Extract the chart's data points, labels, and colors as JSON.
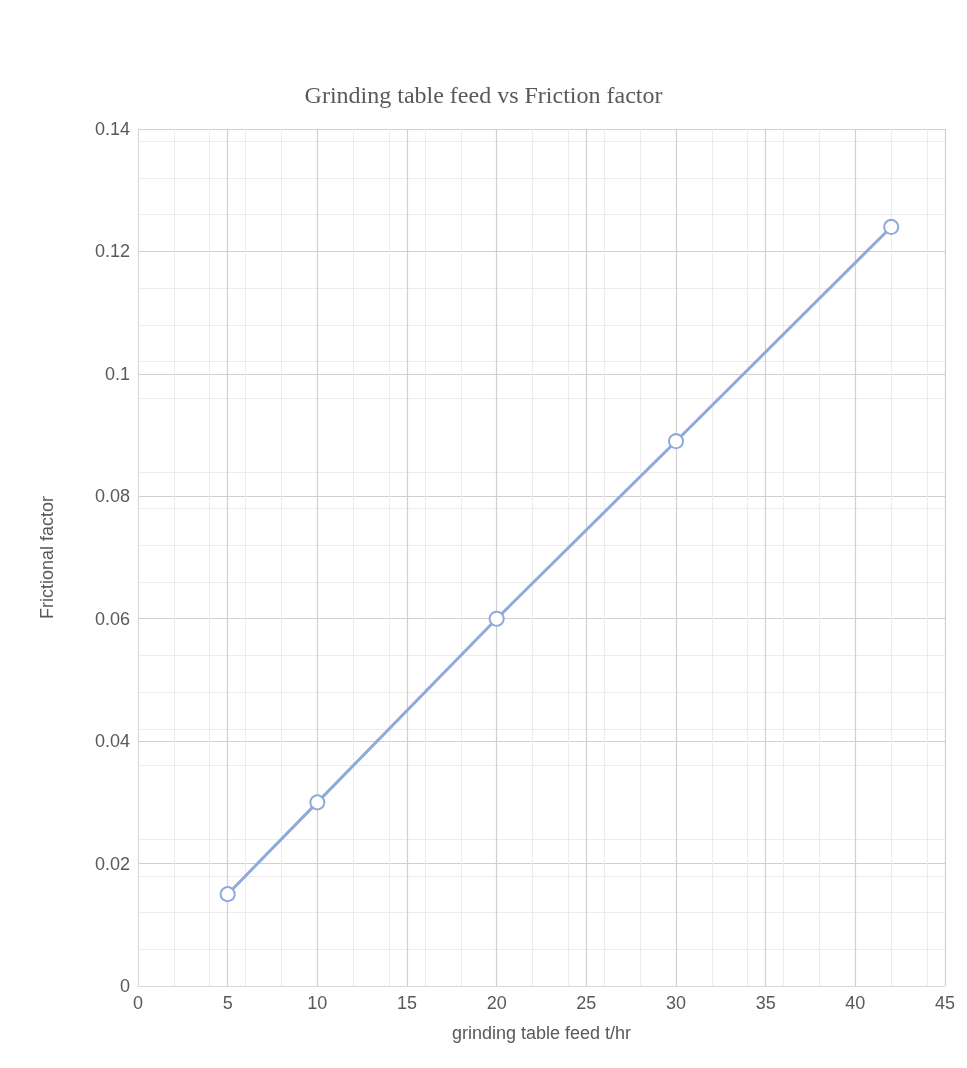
{
  "chart_data": {
    "type": "line",
    "title": "Grinding table feed vs Friction factor",
    "xlabel": "grinding table feed t/hr",
    "ylabel": "Frictional factor",
    "x": [
      5,
      10,
      20,
      30,
      42
    ],
    "series": [
      {
        "color": "#8eaadb",
        "values": [
          0.015,
          0.03,
          0.06,
          0.089,
          0.124
        ]
      }
    ],
    "xlim": [
      0,
      45
    ],
    "xticks": [
      0,
      5,
      10,
      15,
      20,
      25,
      30,
      35,
      40,
      45
    ],
    "ylim": [
      0,
      0.14
    ],
    "yticks": [
      0,
      0.02,
      0.04,
      0.06,
      0.08,
      0.1,
      0.12,
      0.14
    ],
    "grid": true,
    "marker": "circle",
    "line_style": "solid"
  }
}
